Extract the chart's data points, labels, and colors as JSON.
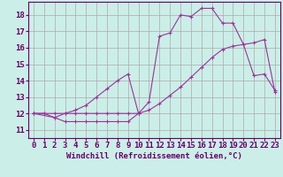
{
  "xlabel": "Windchill (Refroidissement éolien,°C)",
  "background_color": "#cceee8",
  "grid_color": "#aaaaaa",
  "line_color": "#993399",
  "xlim": [
    -0.5,
    23.5
  ],
  "ylim": [
    10.5,
    18.8
  ],
  "xticks": [
    0,
    1,
    2,
    3,
    4,
    5,
    6,
    7,
    8,
    9,
    10,
    11,
    12,
    13,
    14,
    15,
    16,
    17,
    18,
    19,
    20,
    21,
    22,
    23
  ],
  "yticks": [
    11,
    12,
    13,
    14,
    15,
    16,
    17,
    18
  ],
  "series1_x": [
    0,
    1,
    2,
    3,
    4,
    5,
    6,
    7,
    8,
    9,
    10
  ],
  "series1_y": [
    12.0,
    12.0,
    11.75,
    11.5,
    11.5,
    11.5,
    11.5,
    11.5,
    11.5,
    11.5,
    12.0
  ],
  "series2_x": [
    0,
    1,
    2,
    3,
    4,
    5,
    6,
    7,
    8,
    9,
    10,
    11,
    12,
    13,
    14,
    15,
    16,
    17,
    18,
    19,
    20,
    21,
    22,
    23
  ],
  "series2_y": [
    12.0,
    12.0,
    12.0,
    12.0,
    12.0,
    12.0,
    12.0,
    12.0,
    12.0,
    12.0,
    12.0,
    12.2,
    12.6,
    13.1,
    13.6,
    14.2,
    14.8,
    15.4,
    15.9,
    16.1,
    16.2,
    16.3,
    16.5,
    13.3
  ],
  "series3_x": [
    0,
    2,
    3,
    4,
    5,
    6,
    7,
    8,
    9,
    10,
    11,
    12,
    13,
    14,
    15,
    16,
    17,
    18,
    19,
    20,
    21,
    22,
    23
  ],
  "series3_y": [
    12.0,
    11.75,
    12.0,
    12.2,
    12.5,
    13.0,
    13.5,
    14.0,
    14.4,
    12.0,
    12.7,
    16.7,
    16.9,
    18.0,
    17.9,
    18.4,
    18.4,
    17.5,
    17.5,
    16.2,
    14.3,
    14.4,
    13.4
  ],
  "tick_fontsize": 6.5,
  "xlabel_fontsize": 6.5,
  "tick_color": "#660066",
  "spine_color": "#660066"
}
